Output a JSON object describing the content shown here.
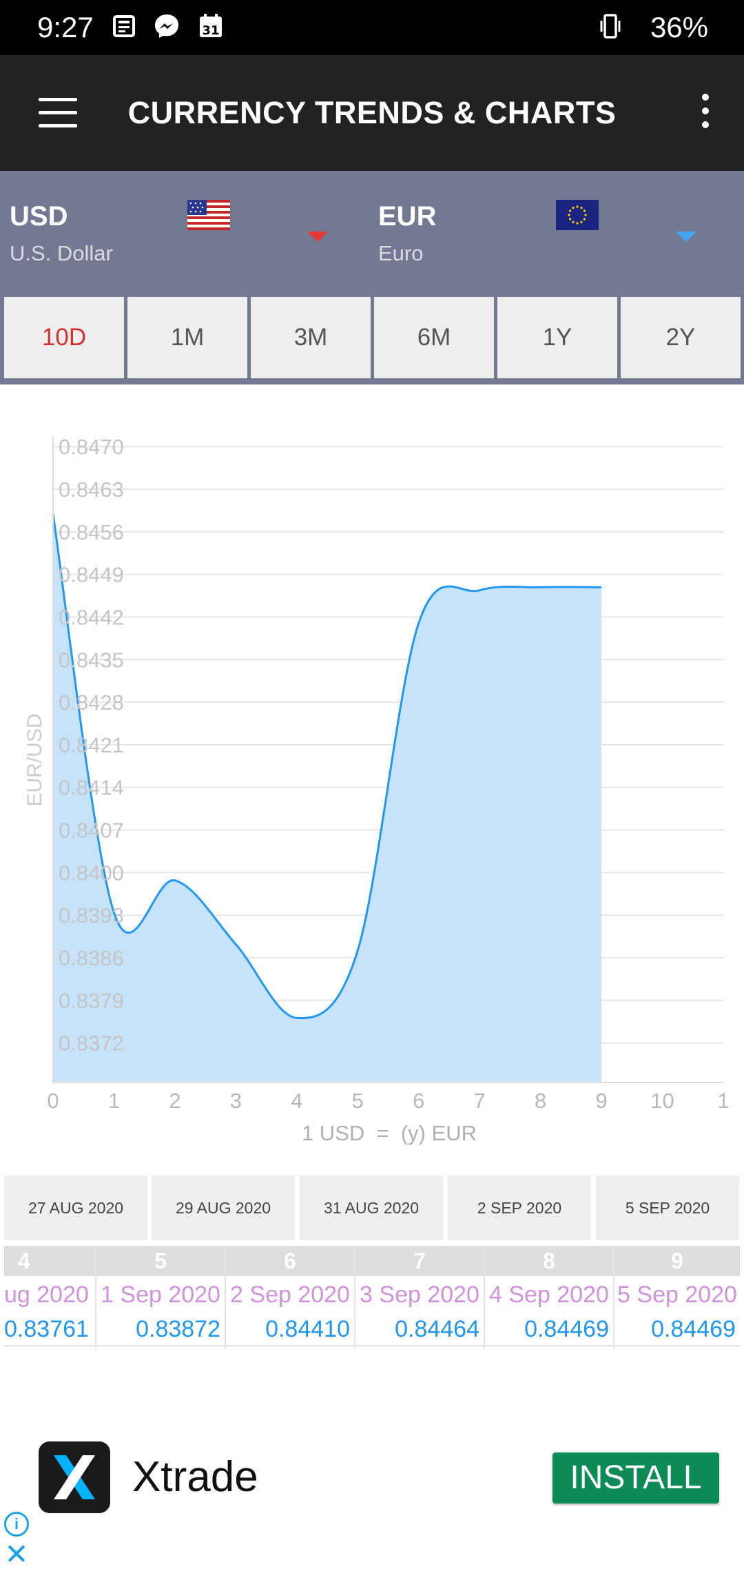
{
  "status_bar": {
    "time": "9:27",
    "battery": "36%"
  },
  "app_bar": {
    "title": "CURRENCY TRENDS & CHARTS"
  },
  "pair": {
    "from": {
      "code": "USD",
      "name": "U.S. Dollar",
      "caret_color": "#e53935"
    },
    "to": {
      "code": "EUR",
      "name": "Euro",
      "caret_color": "#42a5f5"
    }
  },
  "periods": [
    {
      "label": "10D",
      "active": true
    },
    {
      "label": "1M",
      "active": false
    },
    {
      "label": "3M",
      "active": false
    },
    {
      "label": "6M",
      "active": false
    },
    {
      "label": "1Y",
      "active": false
    },
    {
      "label": "2Y",
      "active": false
    }
  ],
  "chart_data": {
    "type": "area",
    "ylabel": "EUR/USD",
    "xlabel": "1 USD  =  (y) EUR",
    "x": [
      0,
      1,
      2,
      3,
      4,
      5,
      6,
      7,
      8,
      9
    ],
    "values": [
      0.84589,
      0.83934,
      0.83987,
      0.83882,
      0.83761,
      0.83872,
      0.8441,
      0.84464,
      0.84469,
      0.84469
    ],
    "x_ticks": [
      "0",
      "1",
      "2",
      "3",
      "4",
      "5",
      "6",
      "7",
      "8",
      "9",
      "10",
      "1"
    ],
    "y_ticks": [
      "0.8470",
      "0.8463",
      "0.8456",
      "0.8449",
      "0.8442",
      "0.8435",
      "0.8428",
      "0.8421",
      "0.8414",
      "0.8407",
      "0.8400",
      "0.8393",
      "0.8386",
      "0.8379",
      "0.8372"
    ],
    "xlim": [
      0,
      11
    ],
    "ylim": [
      0.83655,
      0.84715
    ],
    "grid": true,
    "line_color": "#2196f3",
    "fill_color": "#c6e3fa"
  },
  "date_tabs": [
    "27 AUG 2020",
    "29 AUG 2020",
    "31 AUG 2020",
    "2 SEP 2020",
    "5 SEP 2020"
  ],
  "table": {
    "columns": [
      {
        "index": "4",
        "date": "ug 2020",
        "value": "0.83761"
      },
      {
        "index": "5",
        "date": "1 Sep 2020",
        "value": "0.83872"
      },
      {
        "index": "6",
        "date": "2 Sep 2020",
        "value": "0.84410"
      },
      {
        "index": "7",
        "date": "3 Sep 2020",
        "value": "0.84464"
      },
      {
        "index": "8",
        "date": "4 Sep 2020",
        "value": "0.84469"
      },
      {
        "index": "9",
        "date": "5 Sep 2020",
        "value": "0.84469"
      }
    ]
  },
  "ad": {
    "name": "Xtrade",
    "cta": "INSTALL",
    "info_glyph": "i",
    "close_glyph": "✕"
  },
  "icons": {
    "menu": "menu-icon",
    "more": "more-vert-icon",
    "vibrate": "vibrate-icon",
    "us_flag": "us-flag-icon",
    "eu_flag": "eu-flag-icon"
  }
}
